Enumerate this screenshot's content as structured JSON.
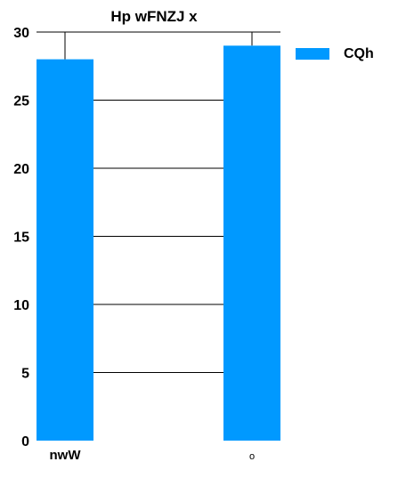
{
  "chart_data": {
    "type": "bar",
    "title": "Hp wFNZJ   x",
    "categories": [
      "nwW",
      "o"
    ],
    "series": [
      {
        "name": "CQh",
        "values": [
          28,
          29
        ],
        "color": "#0099ff"
      }
    ],
    "ylim": [
      0,
      30
    ],
    "yticks": [
      0,
      5,
      10,
      15,
      20,
      25,
      30
    ],
    "grid": true,
    "legend_position": "right"
  }
}
